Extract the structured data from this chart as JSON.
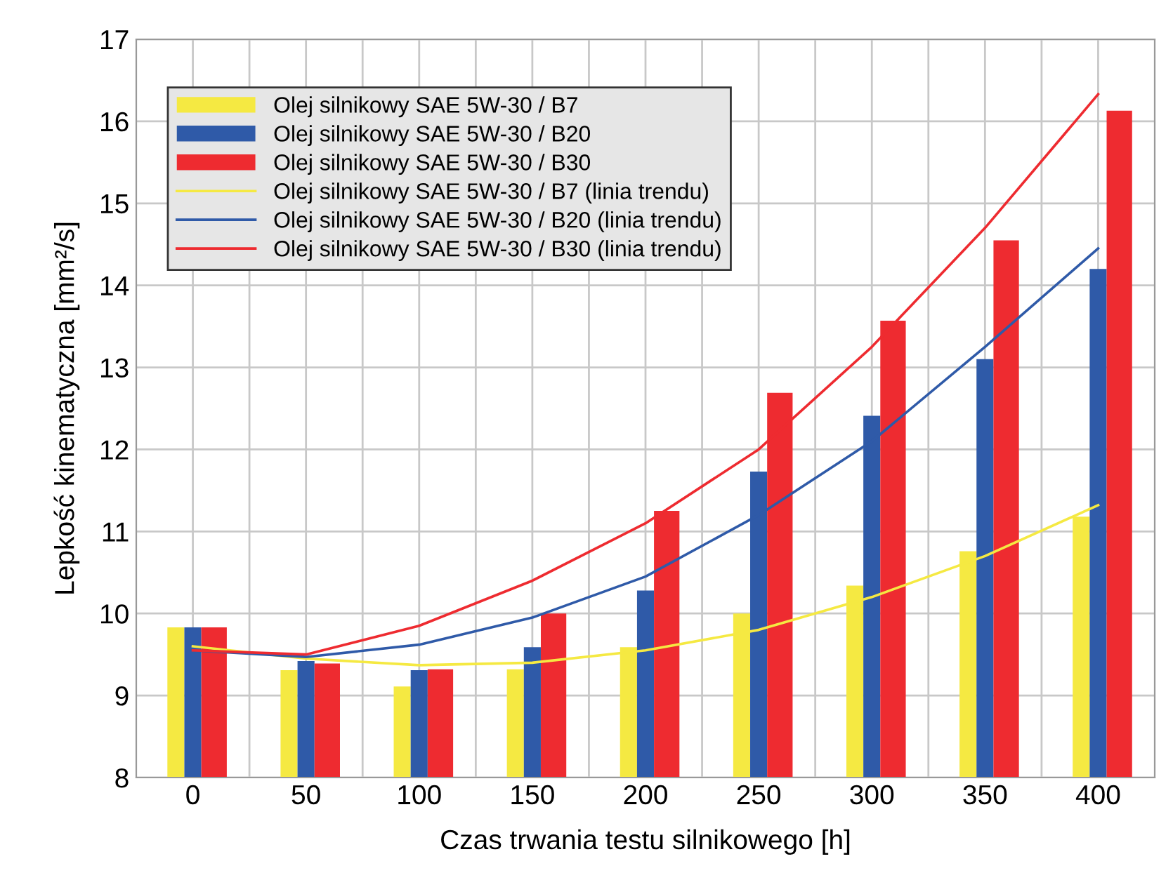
{
  "chart_data": {
    "type": "bar",
    "xlabel": "Czas trwania testu silnikowego [h]",
    "ylabel": "Lepkość kinematyczna [mm²/s]",
    "categories": [
      "0",
      "50",
      "100",
      "150",
      "200",
      "250",
      "300",
      "350",
      "400"
    ],
    "series": [
      {
        "name": "Olej silnikowy SAE 5W-30 / B7",
        "color": "#f5e942",
        "values": [
          9.83,
          9.31,
          9.11,
          9.32,
          9.59,
          10.0,
          10.34,
          10.76,
          11.18
        ]
      },
      {
        "name": "Olej silnikowy SAE 5W-30 / B20",
        "color": "#2f5aa8",
        "values": [
          9.83,
          9.42,
          9.31,
          9.59,
          10.28,
          11.73,
          12.41,
          13.1,
          14.2
        ]
      },
      {
        "name": "Olej silnikowy SAE 5W-30 / B30",
        "color": "#ee2b30",
        "values": [
          9.83,
          9.39,
          9.32,
          10.0,
          11.25,
          12.69,
          13.57,
          14.55,
          16.13
        ]
      },
      {
        "name": "Olej silnikowy SAE 5W-30 / B7 (linia trendu)",
        "type": "line",
        "color": "#f5e942",
        "values": [
          9.6,
          9.45,
          9.37,
          9.4,
          9.55,
          9.8,
          10.2,
          10.7,
          11.32
        ]
      },
      {
        "name": "Olej silnikowy SAE 5W-30 / B20 (linia trendu)",
        "type": "line",
        "color": "#2f5aa8",
        "values": [
          9.55,
          9.47,
          9.62,
          9.95,
          10.45,
          11.2,
          12.1,
          13.25,
          14.45
        ]
      },
      {
        "name": "Olej silnikowy SAE 5W-30 / B30 (linia trendu)",
        "type": "line",
        "color": "#ee2b30",
        "values": [
          9.55,
          9.5,
          9.85,
          10.4,
          11.1,
          12.0,
          13.25,
          14.7,
          16.33
        ]
      }
    ],
    "ylim": [
      8,
      17
    ],
    "yticks": [
      8,
      9,
      10,
      11,
      12,
      13,
      14,
      15,
      16,
      17
    ],
    "grid": true,
    "legend": "top left",
    "marker": "none",
    "line_style": "solid"
  }
}
